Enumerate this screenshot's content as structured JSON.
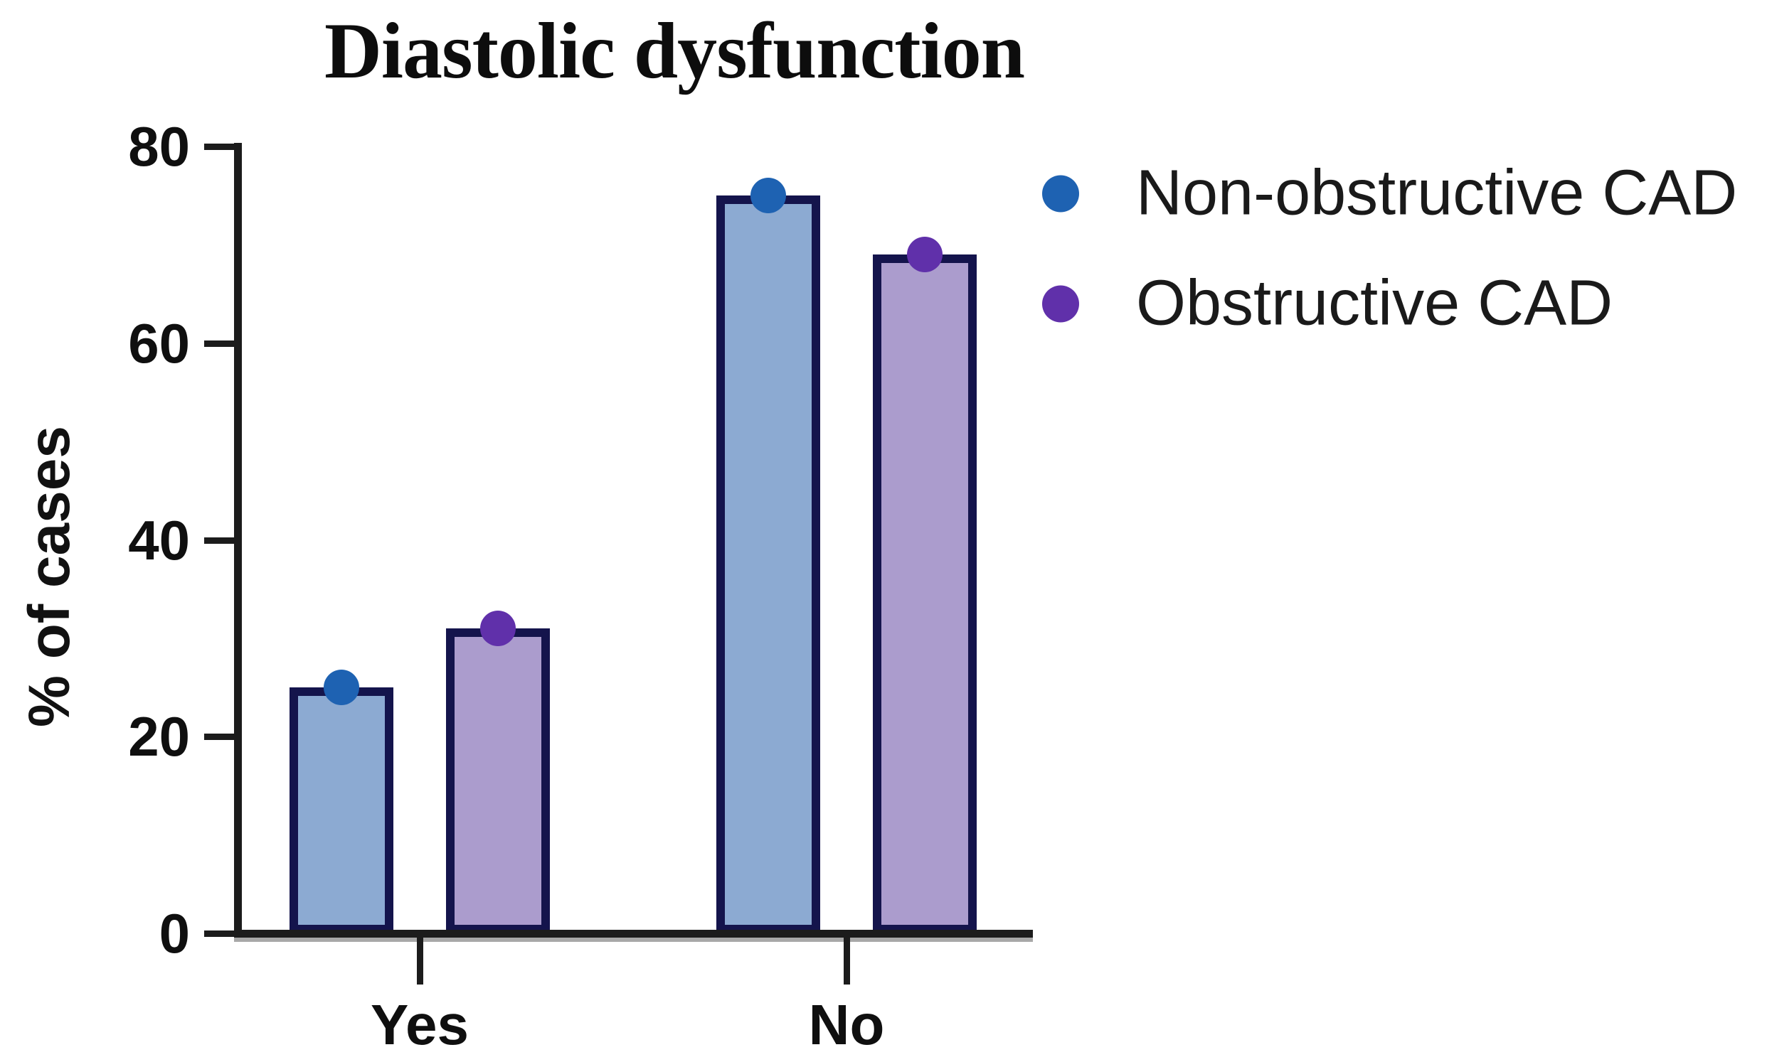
{
  "chart_data": {
    "type": "bar",
    "title": "Diastolic dysfunction",
    "xlabel": "",
    "ylabel": "% of cases",
    "categories": [
      "Yes",
      "No"
    ],
    "series": [
      {
        "name": "Non-obstructive CAD",
        "values": [
          25,
          75
        ],
        "bar_fill": "#8caad2",
        "dot_color": "#1e62b2"
      },
      {
        "name": "Obstructive CAD",
        "values": [
          31,
          69
        ],
        "bar_fill": "#ab9ccd",
        "dot_color": "#6030aa"
      }
    ],
    "ylim": [
      0,
      80
    ],
    "yticks": [
      "0",
      "20",
      "40",
      "60",
      "80"
    ],
    "ytick_values": [
      0,
      20,
      40,
      60,
      80
    ],
    "bar_outline_color": "#14144c",
    "axis_color": "#1c1c1c",
    "grid": false,
    "legend_position": "right",
    "markers_on_bar_tops": true
  }
}
